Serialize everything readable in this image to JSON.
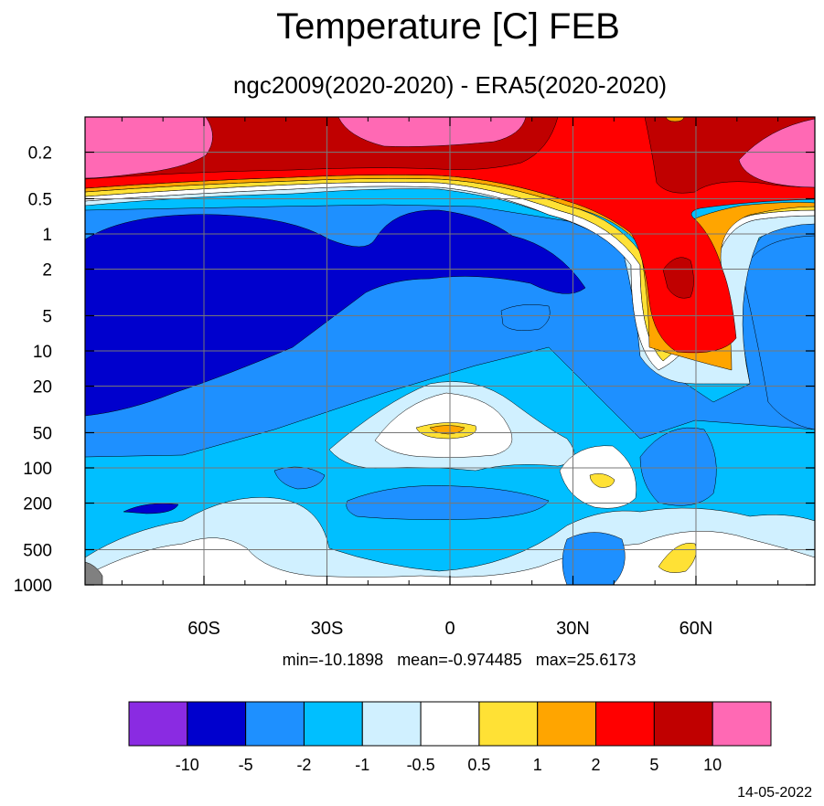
{
  "chart_data": {
    "type": "heatmap",
    "title": "Temperature [C] FEB",
    "subtitle": "ngc2009(2020-2020) - ERA5(2020-2020)",
    "x_ticks": [
      {
        "value": -60,
        "label": "60S"
      },
      {
        "value": -30,
        "label": "30S"
      },
      {
        "value": 0,
        "label": "0"
      },
      {
        "value": 30,
        "label": "30N"
      },
      {
        "value": 60,
        "label": "60N"
      }
    ],
    "xlim": [
      -89,
      89
    ],
    "y_ticks": [
      {
        "value": 0.2,
        "label": "0.2"
      },
      {
        "value": 0.5,
        "label": "0.5"
      },
      {
        "value": 1,
        "label": "1"
      },
      {
        "value": 2,
        "label": "2"
      },
      {
        "value": 5,
        "label": "5"
      },
      {
        "value": 10,
        "label": "10"
      },
      {
        "value": 20,
        "label": "20"
      },
      {
        "value": 50,
        "label": "50"
      },
      {
        "value": 100,
        "label": "100"
      },
      {
        "value": 200,
        "label": "200"
      },
      {
        "value": 500,
        "label": "500"
      },
      {
        "value": 1000,
        "label": "1000"
      }
    ],
    "ylim": [
      0.1,
      1000
    ],
    "y_scale": "log",
    "y_inverted": true,
    "grid": true,
    "stats": "min=-10.1898   mean=-0.974485   max=25.6173",
    "legend_levels": [
      "-10",
      "-5",
      "-2",
      "-1",
      "-0.5",
      "0.5",
      "1",
      "2",
      "5",
      "10"
    ],
    "legend_colors": [
      "#8a2be2",
      "#0000cd",
      "#1e90ff",
      "#00bfff",
      "#d0f0ff",
      "#ffffff",
      "#ffe135",
      "#ffa500",
      "#ff0000",
      "#c00000",
      "#ff69b4"
    ],
    "date": "14-05-2022"
  }
}
